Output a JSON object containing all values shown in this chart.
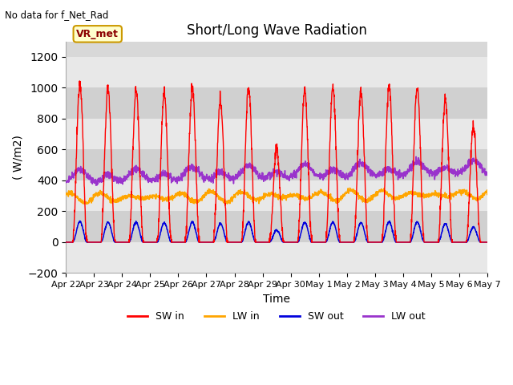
{
  "title": "Short/Long Wave Radiation",
  "xlabel": "Time",
  "ylabel": "( W/m2)",
  "ylim": [
    -200,
    1300
  ],
  "yticks": [
    -200,
    0,
    200,
    400,
    600,
    800,
    1000,
    1200
  ],
  "total_days": 15,
  "background_color": "#ffffff",
  "plot_bg_color": "#d8d8d8",
  "annotation_text": "No data for f_Net_Rad",
  "station_label": "VR_met",
  "colors": {
    "SW_in": "#ff0000",
    "LW_in": "#ffa500",
    "SW_out": "#0000dd",
    "LW_out": "#9933cc"
  },
  "legend_labels": [
    "SW in",
    "LW in",
    "SW out",
    "LW out"
  ],
  "x_tick_labels": [
    "Apr 22",
    "Apr 23",
    "Apr 24",
    "Apr 25",
    "Apr 26",
    "Apr 27",
    "Apr 28",
    "Apr 29",
    "Apr 30",
    "May 1",
    "May 2",
    "May 3",
    "May 4",
    "May 5",
    "May 6",
    "May 7"
  ],
  "grid_color": "#ffffff",
  "title_fontsize": 12,
  "label_fontsize": 10,
  "band_colors": [
    "#e8e8e8",
    "#d0d0d0"
  ]
}
